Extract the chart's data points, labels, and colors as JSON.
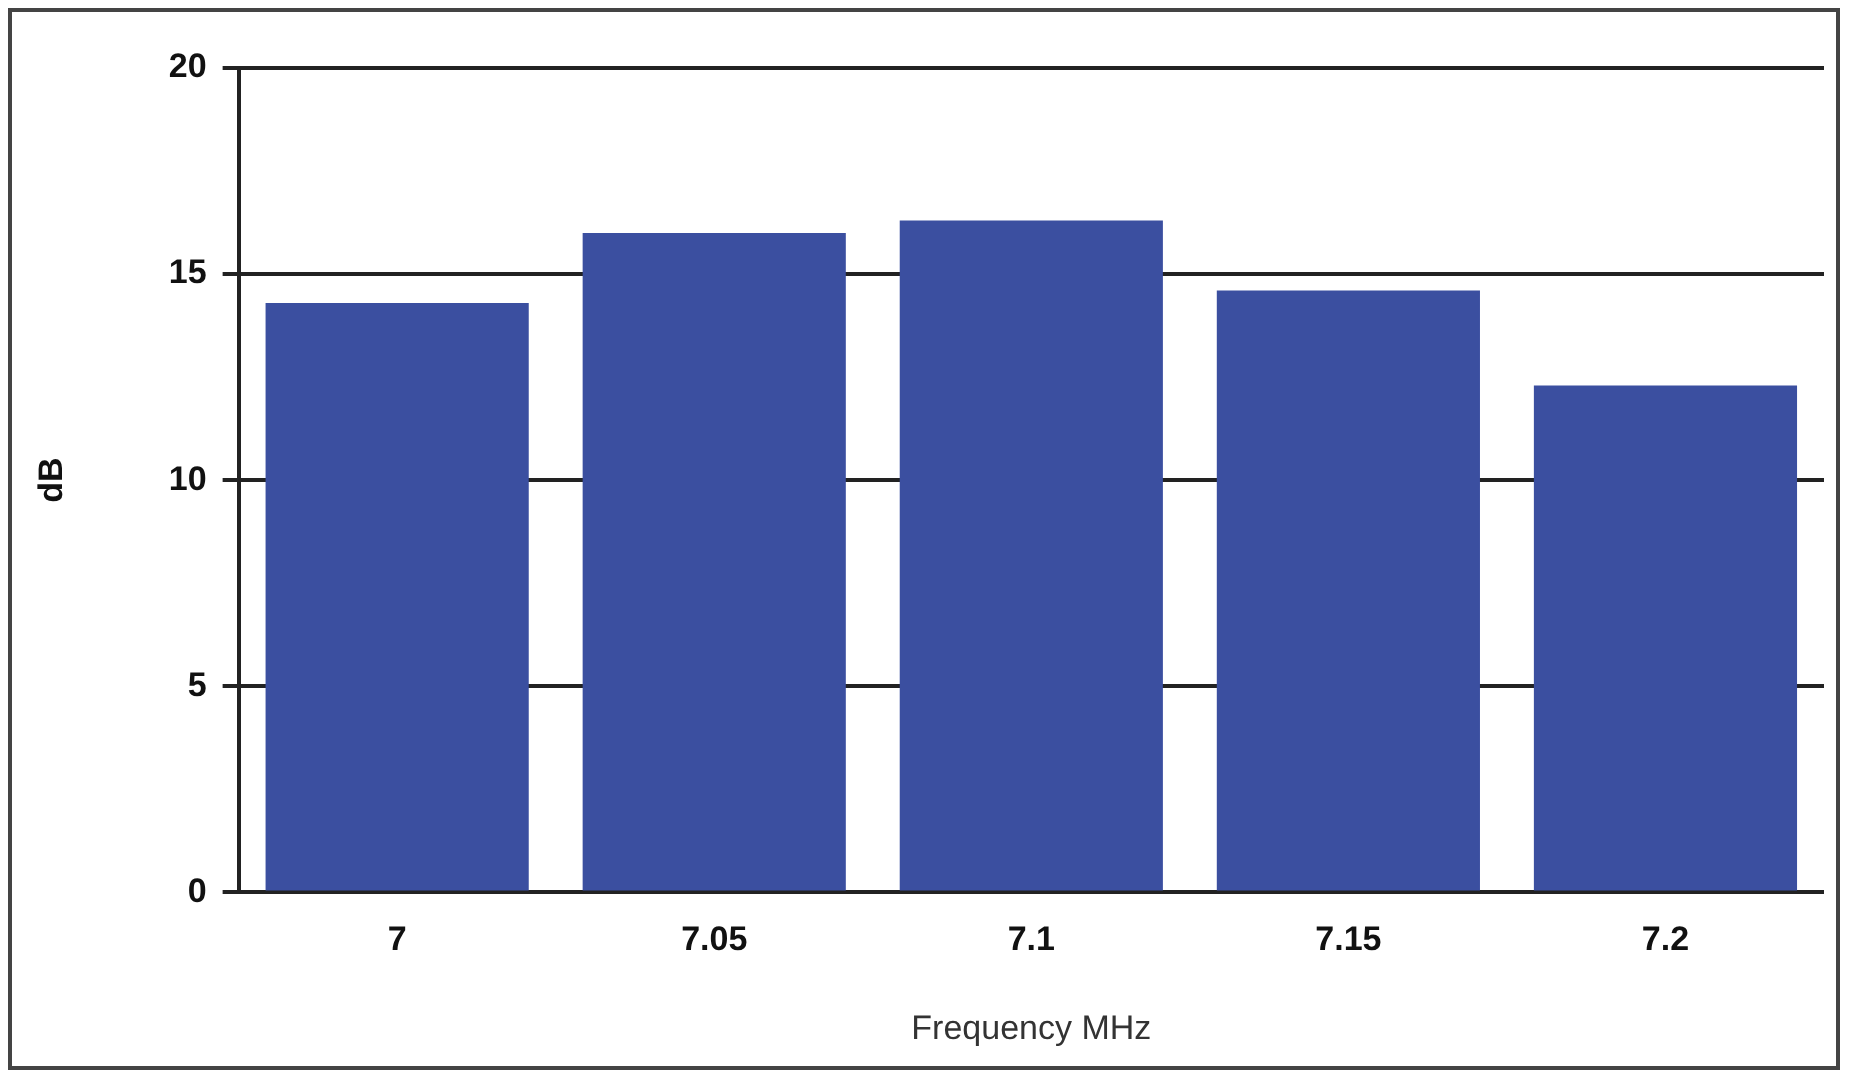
{
  "chart_data": {
    "type": "bar",
    "xlabel": "Frequency MHz",
    "ylabel": "dB",
    "categories": [
      "7",
      "7.05",
      "7.1",
      "7.15",
      "7.2"
    ],
    "values": [
      14.3,
      16.0,
      16.3,
      14.6,
      12.3
    ],
    "color": "#3b4fa0",
    "ylim": [
      0,
      20
    ],
    "yticks": [
      0,
      5,
      10,
      15,
      20
    ],
    "grid": "y",
    "legend": false
  }
}
